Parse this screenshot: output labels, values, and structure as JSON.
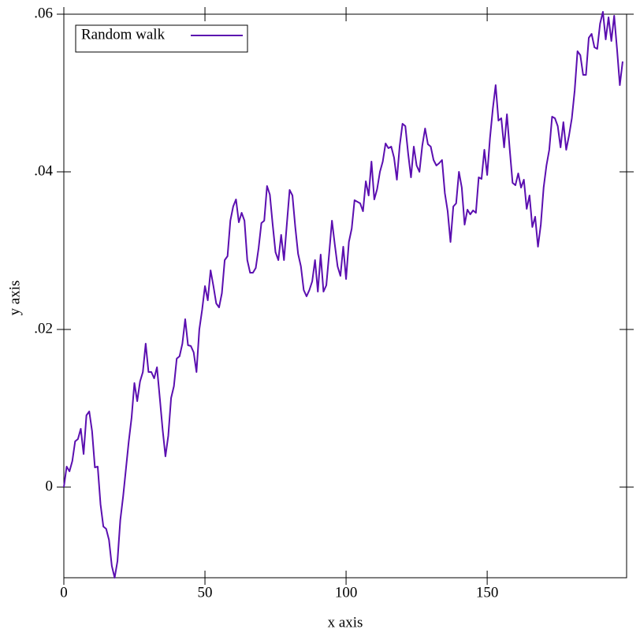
{
  "chart_data": {
    "type": "line",
    "xlabel": "x axis",
    "ylabel": "y axis",
    "x": [
      0,
      1,
      2,
      3,
      4,
      5,
      6,
      7,
      8,
      9,
      10,
      11,
      12,
      13,
      14,
      15,
      16,
      17,
      18,
      19,
      20,
      21,
      22,
      23,
      24,
      25,
      26,
      27,
      28,
      29,
      30,
      31,
      32,
      33,
      34,
      35,
      36,
      37,
      38,
      39,
      40,
      41,
      42,
      43,
      44,
      45,
      46,
      47,
      48,
      49,
      50,
      51,
      52,
      53,
      54,
      55,
      56,
      57,
      58,
      59,
      60,
      61,
      62,
      63,
      64,
      65,
      66,
      67,
      68,
      69,
      70,
      71,
      72,
      73,
      74,
      75,
      76,
      77,
      78,
      79,
      80,
      81,
      82,
      83,
      84,
      85,
      86,
      87,
      88,
      89,
      90,
      91,
      92,
      93,
      94,
      95,
      96,
      97,
      98,
      99,
      100,
      101,
      102,
      103,
      104,
      105,
      106,
      107,
      108,
      109,
      110,
      111,
      112,
      113,
      114,
      115,
      116,
      117,
      118,
      119,
      120,
      121,
      122,
      123,
      124,
      125,
      126,
      127,
      128,
      129,
      130,
      131,
      132,
      133,
      134,
      135,
      136,
      137,
      138,
      139,
      140,
      141,
      142,
      143,
      144,
      145,
      146,
      147,
      148,
      149,
      150,
      151,
      152,
      153,
      154,
      155,
      156,
      157,
      158,
      159,
      160,
      161,
      162,
      163,
      164,
      165,
      166,
      167,
      168,
      169,
      170,
      171,
      172,
      173,
      174,
      175,
      176,
      177,
      178,
      179,
      180,
      181,
      182,
      183,
      184,
      185,
      186,
      187,
      188,
      189,
      190,
      191,
      192,
      193,
      194,
      195,
      196,
      197,
      198
    ],
    "series": [
      {
        "name": "Random walk",
        "color": "#5b0fb0",
        "values": [
          0,
          0.0026,
          0.002,
          0.0033,
          0.0058,
          0.0061,
          0.0074,
          0.0042,
          0.0091,
          0.0096,
          0.0071,
          0.0025,
          0.0026,
          -0.0022,
          -0.005,
          -0.0053,
          -0.0067,
          -0.01,
          -0.0115,
          -0.0094,
          -0.0042,
          -0.0012,
          0.0023,
          0.0058,
          0.0088,
          0.0132,
          0.0109,
          0.0134,
          0.0146,
          0.0182,
          0.0146,
          0.0146,
          0.0138,
          0.0152,
          0.0113,
          0.0073,
          0.0039,
          0.0065,
          0.0113,
          0.0128,
          0.0163,
          0.0166,
          0.0182,
          0.0213,
          0.018,
          0.0179,
          0.0171,
          0.0146,
          0.02,
          0.0225,
          0.0255,
          0.0237,
          0.0275,
          0.0255,
          0.0233,
          0.0228,
          0.0246,
          0.0288,
          0.0293,
          0.0338,
          0.0356,
          0.0365,
          0.0336,
          0.0348,
          0.0338,
          0.0288,
          0.0272,
          0.0272,
          0.0278,
          0.0303,
          0.0335,
          0.0338,
          0.0382,
          0.0371,
          0.0333,
          0.0298,
          0.0288,
          0.032,
          0.0288,
          0.0333,
          0.0377,
          0.037,
          0.033,
          0.0296,
          0.028,
          0.025,
          0.0242,
          0.025,
          0.0261,
          0.0288,
          0.0248,
          0.0295,
          0.0248,
          0.0256,
          0.0296,
          0.0338,
          0.0308,
          0.028,
          0.0268,
          0.0305,
          0.0264,
          0.0311,
          0.0328,
          0.0364,
          0.0362,
          0.036,
          0.035,
          0.0388,
          0.037,
          0.0413,
          0.0365,
          0.0378,
          0.04,
          0.0413,
          0.0436,
          0.043,
          0.0432,
          0.0418,
          0.039,
          0.0433,
          0.0461,
          0.0458,
          0.0423,
          0.0393,
          0.0432,
          0.0408,
          0.04,
          0.0433,
          0.0455,
          0.0435,
          0.0432,
          0.0415,
          0.0408,
          0.0411,
          0.0415,
          0.0373,
          0.035,
          0.0311,
          0.0356,
          0.036,
          0.04,
          0.038,
          0.0333,
          0.0352,
          0.0346,
          0.0351,
          0.0348,
          0.0393,
          0.0391,
          0.0428,
          0.0396,
          0.0443,
          0.048,
          0.051,
          0.0465,
          0.0468,
          0.0431,
          0.0473,
          0.0428,
          0.0386,
          0.0383,
          0.0398,
          0.038,
          0.039,
          0.0353,
          0.037,
          0.033,
          0.0343,
          0.0305,
          0.0333,
          0.038,
          0.0408,
          0.0428,
          0.047,
          0.0468,
          0.0458,
          0.0431,
          0.0463,
          0.0428,
          0.0446,
          0.0468,
          0.0503,
          0.0553,
          0.0548,
          0.0523,
          0.0523,
          0.057,
          0.0575,
          0.0558,
          0.0556,
          0.0588,
          0.0603,
          0.0568,
          0.0596,
          0.0566,
          0.0598,
          0.0556,
          0.051,
          0.054
        ]
      }
    ],
    "xlim": [
      0,
      199.4
    ],
    "ylim": [
      -0.0115,
      0.06
    ],
    "xticks": [
      0,
      50,
      100,
      150
    ],
    "yticks": [
      {
        "value": 0.06,
        "label": ".06"
      },
      {
        "value": 0.04,
        "label": ".04"
      },
      {
        "value": 0.02,
        "label": ".02"
      },
      0
    ],
    "legend": "top-left"
  }
}
